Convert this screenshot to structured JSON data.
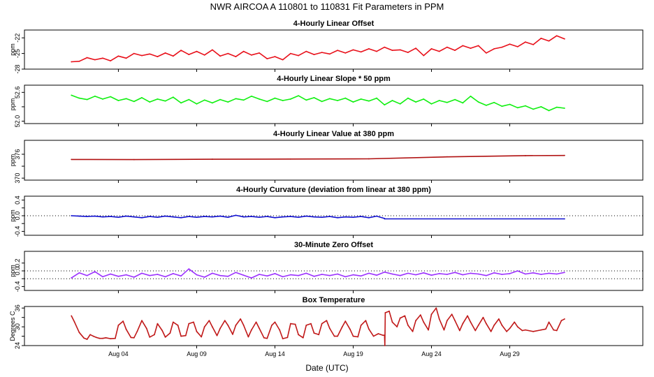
{
  "figure": {
    "title": "NWR   AIRCOA A   110801 to 110831   Fit Parameters in PPM",
    "xlabel": "Date (UTC)",
    "x_axis": {
      "domain_days": [
        -2,
        37.5
      ],
      "tick_labels": [
        "Aug 04",
        "Aug 09",
        "Aug 14",
        "Aug 19",
        "Aug 24",
        "Aug 29"
      ],
      "tick_days": [
        4,
        9,
        14,
        19,
        24,
        29
      ]
    }
  },
  "chart_data": [
    {
      "type": "line",
      "title": "4-Hourly Linear Offset",
      "ylabel": "ppm",
      "ylim": [
        -28,
        -20.5
      ],
      "yticks": [
        -28,
        -25,
        -22
      ],
      "ytick_labels": [
        "-28",
        "-25",
        "-22"
      ],
      "color": "#e8101a",
      "series": [
        {
          "x": [
            1,
            1.5,
            2,
            2.5,
            3,
            3.5,
            4,
            4.5,
            5,
            5.5,
            6,
            6.5,
            7,
            7.5,
            8,
            8.5,
            9,
            9.5,
            10,
            10.5,
            11,
            11.5,
            12,
            12.5,
            13,
            13.5,
            14,
            14.5,
            15,
            15.5,
            16,
            16.5,
            17,
            17.5,
            18,
            18.5,
            19,
            19.5,
            20,
            20.5,
            21,
            21.5,
            22,
            22.5,
            23,
            23.5,
            24,
            24.5,
            25,
            25.5,
            26,
            26.5,
            27,
            27.5,
            28,
            28.5,
            29,
            29.5,
            30,
            30.5,
            31,
            31.5,
            32,
            32.5
          ],
          "values": [
            -26.6,
            -26.5,
            -25.8,
            -26.2,
            -25.9,
            -26.4,
            -25.5,
            -25.9,
            -25.0,
            -25.4,
            -25.1,
            -25.6,
            -24.9,
            -25.5,
            -24.4,
            -25.2,
            -24.6,
            -25.3,
            -24.3,
            -25.5,
            -25.0,
            -25.6,
            -24.6,
            -25.3,
            -24.9,
            -26.0,
            -25.6,
            -26.2,
            -25.0,
            -25.4,
            -24.6,
            -25.2,
            -24.8,
            -25.1,
            -24.4,
            -24.9,
            -24.3,
            -24.7,
            -24.1,
            -24.6,
            -23.8,
            -24.4,
            -24.3,
            -24.8,
            -24.0,
            -25.4,
            -24.1,
            -24.6,
            -23.8,
            -24.4,
            -23.5,
            -24.0,
            -23.5,
            -24.9,
            -24.1,
            -23.8,
            -23.2,
            -23.7,
            -22.8,
            -23.3,
            -22.1,
            -22.6,
            -21.6,
            -22.2
          ]
        }
      ]
    },
    {
      "type": "line",
      "title": "4-Hourly Linear Slope * 50 ppm",
      "ylabel": "ppm",
      "ylim": [
        51.95,
        52.75
      ],
      "yticks": [
        52.0,
        52.3,
        52.6
      ],
      "ytick_labels": [
        "52.0",
        "",
        "52.6"
      ],
      "color": "#10f010",
      "series": [
        {
          "x": [
            1,
            1.5,
            2,
            2.5,
            3,
            3.5,
            4,
            4.5,
            5,
            5.5,
            6,
            6.5,
            7,
            7.5,
            8,
            8.5,
            9,
            9.5,
            10,
            10.5,
            11,
            11.5,
            12,
            12.5,
            13,
            13.5,
            14,
            14.5,
            15,
            15.5,
            16,
            16.5,
            17,
            17.5,
            18,
            18.5,
            19,
            19.5,
            20,
            20.5,
            21,
            21.5,
            22,
            22.5,
            23,
            23.5,
            24,
            24.5,
            25,
            25.5,
            26,
            26.5,
            27,
            27.5,
            28,
            28.5,
            29,
            29.5,
            30,
            30.5,
            31,
            31.5,
            32,
            32.5
          ],
          "values": [
            52.54,
            52.48,
            52.45,
            52.52,
            52.46,
            52.51,
            52.43,
            52.47,
            52.41,
            52.49,
            52.4,
            52.46,
            52.42,
            52.5,
            52.38,
            52.45,
            52.36,
            52.44,
            52.38,
            52.45,
            52.4,
            52.47,
            52.44,
            52.52,
            52.46,
            52.41,
            52.48,
            52.43,
            52.46,
            52.53,
            52.44,
            52.49,
            52.41,
            52.47,
            52.43,
            52.48,
            52.4,
            52.46,
            52.42,
            52.48,
            52.34,
            52.43,
            52.36,
            52.48,
            52.4,
            52.46,
            52.36,
            52.43,
            52.39,
            52.45,
            52.38,
            52.52,
            52.4,
            52.33,
            52.39,
            52.31,
            52.35,
            52.28,
            52.32,
            52.25,
            52.3,
            52.22,
            52.29,
            52.27
          ]
        }
      ]
    },
    {
      "type": "line",
      "title": "4-Hourly Linear Value at 380 ppm",
      "ylabel": "ppm",
      "ylim": [
        369.5,
        379.5
      ],
      "yticks": [
        370,
        373,
        376
      ],
      "ytick_labels": [
        "370",
        "",
        "376"
      ],
      "color": "#b01010",
      "series": [
        {
          "x": [
            1,
            5,
            10,
            15,
            20,
            25,
            30,
            32.5
          ],
          "values": [
            374.7,
            374.65,
            374.75,
            374.8,
            374.85,
            375.35,
            375.65,
            375.7
          ]
        }
      ]
    },
    {
      "type": "line",
      "title": "4-Hourly Curvature (deviation from linear at 380 ppm)",
      "ylabel": "ppm",
      "ylim": [
        -0.5,
        0.5
      ],
      "yticks": [
        -0.4,
        -0.2,
        0.0,
        0.2,
        0.4
      ],
      "ytick_labels": [
        "-0.4",
        "",
        "0.0",
        "",
        "0.4"
      ],
      "color": "#1010d0",
      "reference_line": 0.0,
      "series": [
        {
          "x": [
            1,
            1.5,
            2,
            2.5,
            3,
            3.5,
            4,
            4.5,
            5,
            5.5,
            6,
            6.5,
            7,
            7.5,
            8,
            8.5,
            9,
            9.5,
            10,
            10.5,
            11,
            11.5,
            12,
            12.5,
            13,
            13.5,
            14,
            14.5,
            15,
            15.5,
            16,
            16.5,
            17,
            17.5,
            18,
            18.5,
            19,
            19.5,
            20,
            20.5,
            21
          ],
          "values": [
            0.0,
            -0.01,
            -0.02,
            -0.01,
            -0.03,
            -0.02,
            -0.04,
            -0.01,
            -0.03,
            -0.05,
            -0.02,
            -0.04,
            -0.01,
            -0.03,
            -0.05,
            -0.02,
            -0.04,
            -0.02,
            -0.03,
            -0.01,
            -0.04,
            0.01,
            -0.03,
            -0.02,
            -0.04,
            -0.02,
            -0.05,
            -0.03,
            -0.02,
            -0.04,
            -0.01,
            -0.03,
            -0.04,
            -0.02,
            -0.05,
            -0.03,
            -0.04,
            -0.02,
            -0.05,
            -0.01,
            -0.07
          ]
        },
        {
          "x": [
            21,
            32.5
          ],
          "values": [
            -0.08,
            -0.08
          ]
        }
      ]
    },
    {
      "type": "line",
      "title": "30-Minute Zero Offset",
      "ylabel": "ppm",
      "ylim": [
        -0.5,
        0.5
      ],
      "yticks": [
        -0.4,
        -0.2,
        0.0,
        0.2
      ],
      "ytick_labels": [
        "-0.4",
        "",
        "0.0",
        "0.2"
      ],
      "color": "#9b30ff",
      "reference_lines": [
        0.0,
        -0.2
      ],
      "series": [
        {
          "x": [
            1,
            1.5,
            2,
            2.5,
            3,
            3.5,
            4,
            4.5,
            5,
            5.5,
            6,
            6.5,
            7,
            7.5,
            8,
            8.5,
            9,
            9.5,
            10,
            10.5,
            11,
            11.5,
            12,
            12.5,
            13,
            13.5,
            14,
            14.5,
            15,
            15.5,
            16,
            16.5,
            17,
            17.5,
            18,
            18.5,
            19,
            19.5,
            20,
            20.5,
            21,
            21.5,
            22,
            22.5,
            23,
            23.5,
            24,
            24.5,
            25,
            25.5,
            26,
            26.5,
            27,
            27.5,
            28,
            28.5,
            29,
            29.5,
            30,
            30.5,
            31,
            31.5,
            32,
            32.5
          ],
          "values": [
            -0.18,
            -0.05,
            -0.12,
            -0.02,
            -0.15,
            -0.08,
            -0.14,
            -0.1,
            -0.16,
            -0.06,
            -0.12,
            -0.09,
            -0.15,
            -0.07,
            -0.13,
            0.05,
            -0.1,
            -0.16,
            -0.06,
            -0.12,
            -0.14,
            -0.04,
            -0.11,
            -0.18,
            -0.09,
            -0.13,
            -0.07,
            -0.15,
            -0.1,
            -0.12,
            -0.06,
            -0.14,
            -0.09,
            -0.12,
            -0.08,
            -0.15,
            -0.1,
            -0.13,
            -0.06,
            -0.11,
            -0.03,
            -0.08,
            -0.12,
            -0.06,
            -0.1,
            -0.05,
            -0.11,
            -0.07,
            -0.09,
            -0.04,
            -0.1,
            -0.06,
            -0.08,
            -0.12,
            -0.05,
            -0.09,
            -0.07,
            0.0,
            -0.08,
            -0.05,
            -0.09,
            -0.06,
            -0.08,
            -0.04
          ]
        }
      ]
    },
    {
      "type": "line",
      "title": "Box Temperature",
      "ylabel": "Degrees C",
      "ylim": [
        24,
        36.5
      ],
      "yticks": [
        24,
        27,
        30,
        33,
        36
      ],
      "ytick_labels": [
        "24",
        "",
        "30",
        "",
        "36"
      ],
      "color": "#c01818",
      "series": [
        {
          "x": [
            1.0,
            1.2,
            1.5,
            1.8,
            2.0,
            2.2,
            2.4,
            2.6,
            2.8,
            3.0,
            3.2,
            3.5,
            3.8,
            4.0,
            4.3,
            4.5,
            4.8,
            5.0,
            5.2,
            5.5,
            5.8,
            6.0,
            6.3,
            6.5,
            6.8,
            7.0,
            7.3,
            7.5,
            7.8,
            8.0,
            8.3,
            8.5,
            8.8,
            9.0,
            9.3,
            9.5,
            9.8,
            10.0,
            10.3,
            10.5,
            10.8,
            11.0,
            11.3,
            11.5,
            11.8,
            12.0,
            12.3,
            12.5,
            12.8,
            13.0,
            13.3,
            13.5,
            13.8,
            14.0,
            14.3,
            14.5,
            14.8,
            15.0,
            15.3,
            15.5,
            15.8,
            16.0,
            16.3,
            16.5,
            16.8,
            17.0,
            17.3,
            17.5,
            17.8,
            18.0,
            18.3,
            18.5,
            18.8,
            19.0,
            19.3,
            19.5,
            19.8,
            20.0,
            20.3,
            20.6,
            20.9,
            21.0,
            21.02,
            21.05,
            21.3,
            21.5,
            21.8,
            22.0,
            22.3,
            22.5,
            22.8,
            23.0,
            23.3,
            23.5,
            23.8,
            24.0,
            24.3,
            24.5,
            24.8,
            25.0,
            25.3,
            25.5,
            25.8,
            26.0,
            26.3,
            26.5,
            26.8,
            27.0,
            27.3,
            27.5,
            27.8,
            28.0,
            28.3,
            28.5,
            28.8,
            29.0,
            29.3,
            29.5,
            29.8,
            30.0,
            30.5,
            31.0,
            31.3,
            31.5,
            31.8,
            32.0,
            32.3,
            32.5
          ],
          "values": [
            33.5,
            31.5,
            28.2,
            26.4,
            26.0,
            27.5,
            27.0,
            26.6,
            26.3,
            26.3,
            26.5,
            26.2,
            26.3,
            30.5,
            31.8,
            29.2,
            26.6,
            26.5,
            28.5,
            32.0,
            29.5,
            26.7,
            27.5,
            31.0,
            28.8,
            26.7,
            28.0,
            31.5,
            30.5,
            27.0,
            27.2,
            31.0,
            31.5,
            28.5,
            26.8,
            30.0,
            32.0,
            30.0,
            27.2,
            29.5,
            32.0,
            30.5,
            27.6,
            30.5,
            32.5,
            30.5,
            26.8,
            29.0,
            31.5,
            29.5,
            26.5,
            26.3,
            30.5,
            31.5,
            29.0,
            26.2,
            26.6,
            31.0,
            30.8,
            27.5,
            26.5,
            30.5,
            31.0,
            28.0,
            27.5,
            31.0,
            32.0,
            29.5,
            27.0,
            27.0,
            30.0,
            31.8,
            29.2,
            27.0,
            26.8,
            30.5,
            32.0,
            29.3,
            27.0,
            27.8,
            27.3,
            27.3,
            24.0,
            34.5,
            35.0,
            31.5,
            30.0,
            32.8,
            33.5,
            30.5,
            28.5,
            32.0,
            33.8,
            31.5,
            29.0,
            34.0,
            36.0,
            32.5,
            29.0,
            32.0,
            34.0,
            32.0,
            28.8,
            31.0,
            33.5,
            31.5,
            28.8,
            30.5,
            33.0,
            31.0,
            28.5,
            30.5,
            32.5,
            30.5,
            28.5,
            29.5,
            31.5,
            30.0,
            28.8,
            29.0,
            28.5,
            29.0,
            29.3,
            31.5,
            29.0,
            28.8,
            32.0,
            32.5
          ]
        }
      ]
    }
  ]
}
